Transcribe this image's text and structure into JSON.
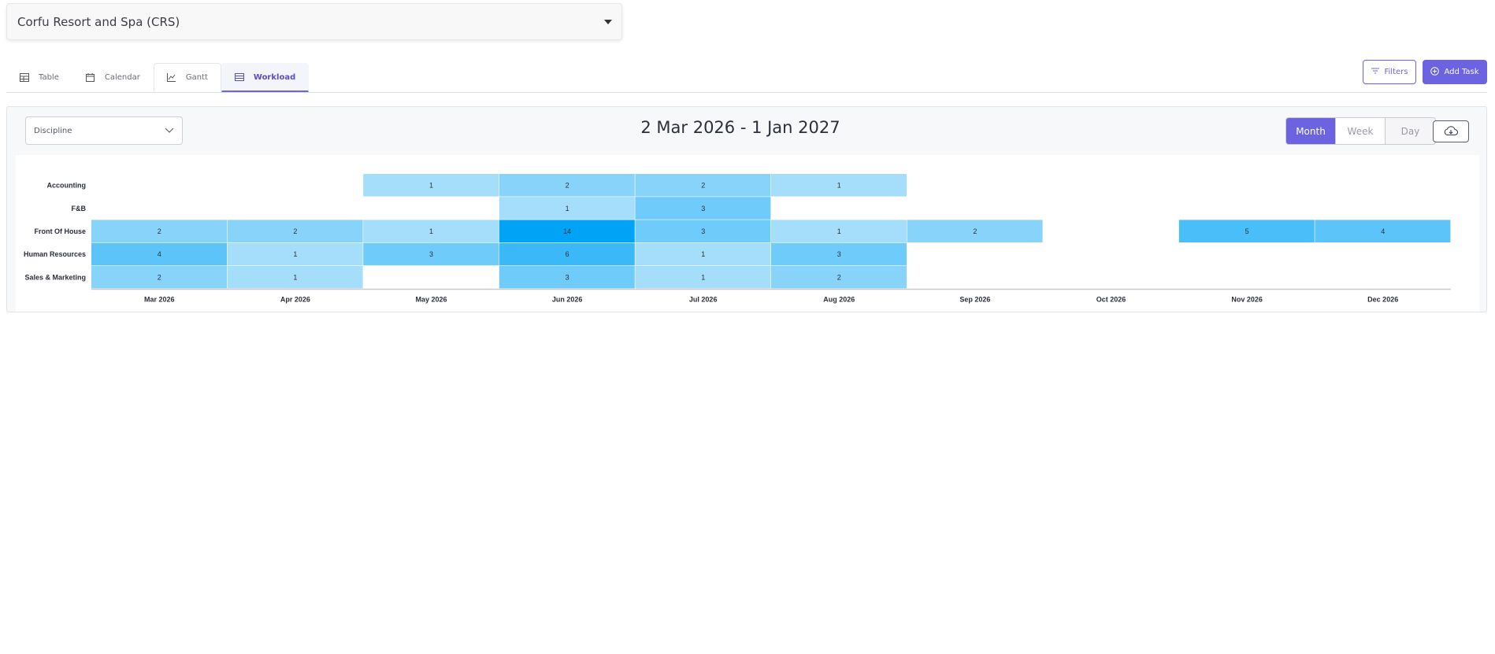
{
  "property": {
    "label": "Corfu Resort and Spa (CRS)"
  },
  "tabs": [
    {
      "label": "Table",
      "icon": "table-icon"
    },
    {
      "label": "Calendar",
      "icon": "calendar-icon"
    },
    {
      "label": "Gantt",
      "icon": "gantt-icon"
    },
    {
      "label": "Workload",
      "icon": "workload-icon",
      "active": true
    }
  ],
  "toolbar": {
    "filters_label": "Filters",
    "add_task_label": "Add Task"
  },
  "workload": {
    "group_by": "Discipline",
    "range_title": "2 Mar 2026 - 1 Jan 2027",
    "view_modes": [
      "Month",
      "Week",
      "Day"
    ],
    "active_view": "Month"
  },
  "colors": {
    "accent": "#6b63e0",
    "heat_max": "#00a3f5",
    "heat_min": "#eef8fe"
  },
  "chart_data": {
    "type": "heatmap",
    "rows": [
      "Accounting",
      "F&B",
      "Front Of House",
      "Human Resources",
      "Sales & Marketing"
    ],
    "columns": [
      "Mar 2026",
      "Apr 2026",
      "May 2026",
      "Jun 2026",
      "Jul 2026",
      "Aug 2026",
      "Sep 2026",
      "Oct 2026",
      "Nov 2026",
      "Dec 2026"
    ],
    "values": [
      [
        null,
        null,
        1,
        2,
        2,
        1,
        null,
        null,
        null,
        null
      ],
      [
        null,
        null,
        null,
        1,
        3,
        null,
        null,
        null,
        null,
        null
      ],
      [
        2,
        2,
        1,
        14,
        3,
        1,
        2,
        null,
        5,
        4
      ],
      [
        4,
        1,
        3,
        6,
        1,
        3,
        null,
        null,
        null,
        null
      ],
      [
        2,
        1,
        null,
        3,
        1,
        2,
        null,
        null,
        null,
        null
      ]
    ],
    "legend": "none"
  }
}
